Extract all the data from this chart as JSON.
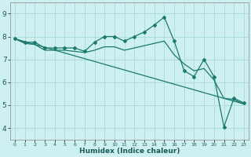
{
  "xlabel": "Humidex (Indice chaleur)",
  "bg_color": "#cff0f0",
  "grid_color": "#aadddd",
  "line_color": "#1a7a6e",
  "xlim": [
    -0.5,
    23.5
  ],
  "ylim": [
    3.5,
    9.5
  ],
  "yticks": [
    4,
    5,
    6,
    7,
    8,
    9
  ],
  "xticks": [
    0,
    1,
    2,
    3,
    4,
    5,
    6,
    7,
    8,
    9,
    10,
    11,
    12,
    13,
    14,
    15,
    16,
    17,
    18,
    19,
    20,
    21,
    22,
    23
  ],
  "line1_x": [
    0,
    1,
    2,
    3,
    4,
    5,
    6,
    7,
    8,
    9,
    10,
    11,
    12,
    13,
    14,
    15,
    16,
    17,
    18,
    19,
    20,
    21,
    22,
    23
  ],
  "line1_y": [
    7.9,
    7.75,
    7.75,
    7.5,
    7.5,
    7.5,
    7.5,
    7.35,
    7.75,
    8.0,
    8.0,
    7.8,
    8.0,
    8.2,
    8.5,
    8.85,
    7.8,
    6.5,
    6.25,
    7.0,
    6.25,
    4.05,
    5.3,
    5.1
  ],
  "line2_x": [
    0,
    1,
    2,
    3,
    4,
    5,
    6,
    7,
    8,
    9,
    10,
    11,
    12,
    13,
    14,
    15,
    16,
    17,
    18,
    19,
    20,
    21,
    22,
    23
  ],
  "line2_y": [
    7.9,
    7.7,
    7.65,
    7.4,
    7.4,
    7.4,
    7.35,
    7.3,
    7.4,
    7.55,
    7.55,
    7.4,
    7.5,
    7.6,
    7.7,
    7.8,
    7.2,
    6.8,
    6.5,
    6.6,
    6.1,
    5.3,
    5.25,
    5.05
  ],
  "line3_x": [
    0,
    23
  ],
  "line3_y": [
    7.9,
    5.05
  ],
  "xlabel_fontsize": 6.5,
  "tick_fontsize_x": 4.5,
  "tick_fontsize_y": 6.5
}
